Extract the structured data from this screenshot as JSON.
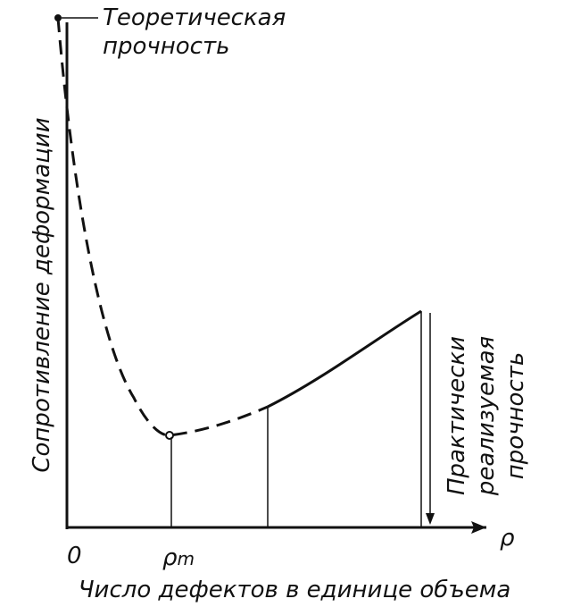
{
  "annotations": {
    "theoretical_strength": [
      "Теоретическая",
      "прочность"
    ],
    "practical_strength": [
      "Практически",
      "реализуемая",
      "прочность"
    ]
  },
  "axes": {
    "y_label": "Сопротивление деформации",
    "x_label": "Число дефектов в единице объема",
    "origin": "0",
    "x_symbol": "ρ",
    "minimum_symbol": {
      "base": "ρ",
      "subscript": "m"
    }
  }
}
